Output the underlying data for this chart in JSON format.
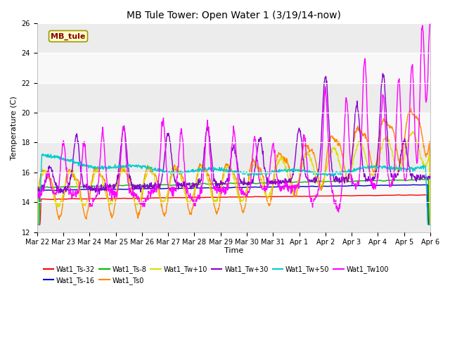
{
  "title": "MB Tule Tower: Open Water 1 (3/19/14-now)",
  "xlabel": "Time",
  "ylabel": "Temperature (C)",
  "ylim": [
    12,
    26
  ],
  "yticks": [
    12,
    14,
    16,
    18,
    20,
    22,
    24,
    26
  ],
  "x_labels": [
    "Mar 22",
    "Mar 23",
    "Mar 24",
    "Mar 25",
    "Mar 26",
    "Mar 27",
    "Mar 28",
    "Mar 29",
    "Mar 30",
    "Mar 31",
    "Apr 1",
    "Apr 2",
    "Apr 3",
    "Apr 4",
    "Apr 5",
    "Apr 6"
  ],
  "legend_label": "MB_tule",
  "series_labels": [
    "Wat1_Ts-32",
    "Wat1_Ts-16",
    "Wat1_Ts-8",
    "Wat1_Ts0",
    "Wat1_Tw+10",
    "Wat1_Tw+30",
    "Wat1_Tw+50",
    "Wat1_Tw100"
  ],
  "series_colors": [
    "#ff0000",
    "#0000cc",
    "#00bb00",
    "#ff8800",
    "#dddd00",
    "#8800cc",
    "#00cccc",
    "#ff00ff"
  ],
  "annotation_box_color": "#ffffcc",
  "annotation_text_color": "#880000",
  "annotation_border_color": "#999900",
  "bg_bands": [
    "#ececec",
    "#f8f8f8"
  ],
  "line_width": 1.0,
  "title_fontsize": 10,
  "tick_fontsize": 7,
  "label_fontsize": 8,
  "legend_fontsize": 7
}
